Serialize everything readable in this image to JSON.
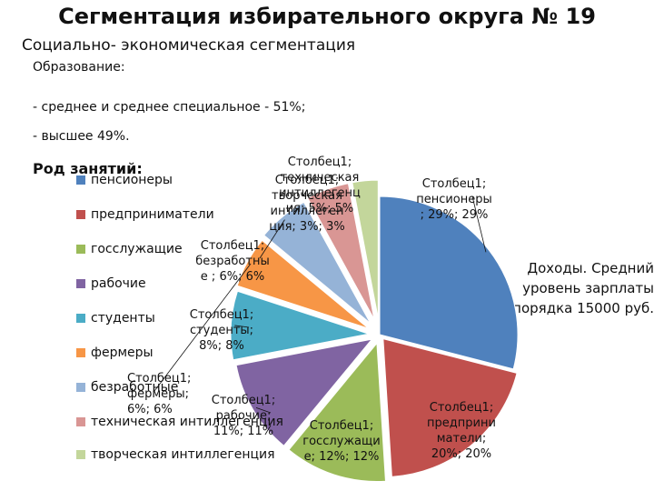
{
  "slide": {
    "title": "Сегментация избирательного округа № 19",
    "subtitle": "Социально- экономическая сегментация",
    "education_heading": "Образование:",
    "education_lines": [
      "- среднее и среднее специальное - 51%;",
      "- высшее 49%."
    ],
    "occupation_heading": "Род занятий:",
    "income_text": "Доходы. Средний уровень зарплаты порядка 15000 руб."
  },
  "chart_data": {
    "type": "pie",
    "title": "",
    "series_name": "Столбец1",
    "categories": [
      "пенсионеры",
      "предприниматели",
      "госслужащие",
      "рабочие",
      "студенты",
      "фермеры",
      "безработные",
      "техническая интиллегенция",
      "творческая интиллегенция"
    ],
    "values": [
      29,
      20,
      12,
      11,
      8,
      6,
      6,
      5,
      3
    ],
    "colors": [
      "#4F81BD",
      "#C0504D",
      "#9BBB59",
      "#8064A2",
      "#4BACC6",
      "#F79646",
      "#95B3D7",
      "#D99694",
      "#C3D69B"
    ],
    "legend_labels": [
      "пенсионеры",
      "предприниматели",
      "госслужащие",
      "рабочие",
      "студенты",
      "фермеры",
      "безработные",
      "техническая интиллегенция",
      "творческая интиллегенция"
    ],
    "data_labels": [
      [
        "Столбец1;",
        "пенсионеры",
        "; 29%; 29%"
      ],
      [
        "Столбец1;",
        "предприни",
        "матели;",
        "20%; 20%"
      ],
      [
        "Столбец1;",
        "госслужащи",
        "е; 12%; 12%"
      ],
      [
        "Столбец1;",
        "рабочие;",
        "11%; 11%"
      ],
      [
        "Столбец1;",
        "студенты;",
        "8%; 8%"
      ],
      [
        "Столбец1;",
        "фермеры;",
        "6%; 6%"
      ],
      [
        "Столбец1;",
        "безработны",
        "е ; 6%; 6%"
      ],
      [
        "Столбец1;",
        "техническая",
        "интиллегенц",
        "ия; 5%; 5%"
      ],
      [
        "Столбец1;",
        "творческая",
        "интиллеген",
        "ция; 3%; 3%"
      ]
    ],
    "legend_position": "left"
  }
}
